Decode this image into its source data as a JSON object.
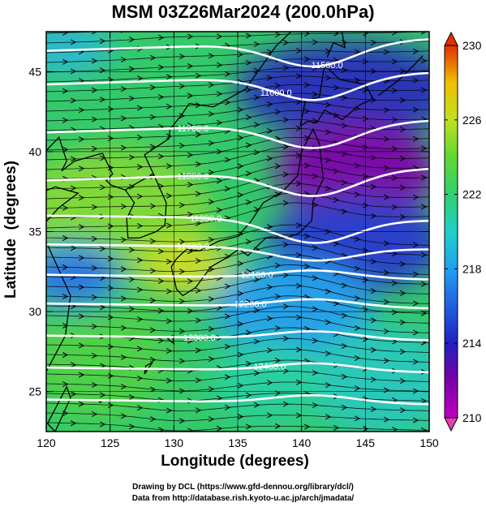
{
  "title": "MSM 03Z26Mar2024 (200.0hPa)",
  "axes": {
    "xlabel": "Longitude (degrees)",
    "ylabel": "Latitude  (degrees)",
    "x_ticks": [
      "120",
      "125",
      "130",
      "135",
      "140",
      "145",
      "150"
    ],
    "y_ticks": [
      "25",
      "30",
      "35",
      "40",
      "45"
    ],
    "xlim": [
      120,
      150
    ],
    "ylim": [
      22.5,
      47.5
    ]
  },
  "colorbar": {
    "ticks": [
      "210",
      "214",
      "218",
      "222",
      "226",
      "230"
    ],
    "range": [
      210,
      230
    ],
    "colors": [
      "#c000c0",
      "#7a00a8",
      "#2020c0",
      "#2080f0",
      "#20c8d8",
      "#20d890",
      "#30d040",
      "#a0e020",
      "#f0e020",
      "#f0a000",
      "#e02000"
    ]
  },
  "contours": [
    {
      "label": "11500.0"
    },
    {
      "label": "11600.0"
    },
    {
      "label": "11700.0"
    },
    {
      "label": "11800.0"
    },
    {
      "label": "11900.0"
    },
    {
      "label": "12000.0"
    },
    {
      "label": "12100.0"
    },
    {
      "label": "12200.0"
    },
    {
      "label": "12300.0"
    },
    {
      "label": "12400.0"
    }
  ],
  "credits": {
    "line1": "Drawing by DCL (https://www.gfd-dennou.org/library/dcl/)",
    "line2": "Data from http://database.rish.kyoto-u.ac.jp/arch/jmadata/"
  }
}
